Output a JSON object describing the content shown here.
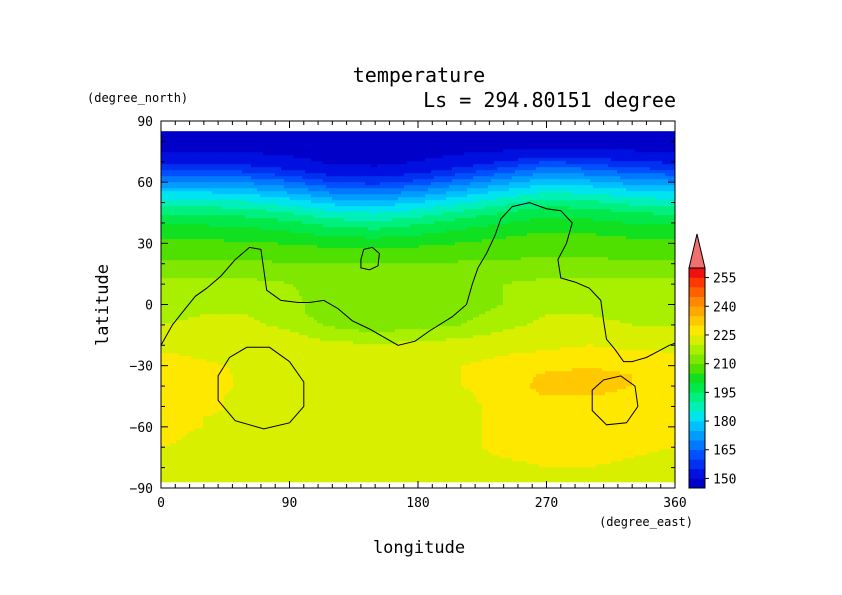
{
  "chart_data": {
    "type": "heatmap",
    "title": "temperature",
    "subtitle": "Ls = 294.80151 degree",
    "xlabel": "longitude",
    "ylabel": "latitude",
    "x_units": "(degree_east)",
    "y_units": "(degree_north)",
    "xlim": [
      0,
      360
    ],
    "ylim": [
      -90,
      90
    ],
    "x_ticks": [
      "0",
      "90",
      "180",
      "270",
      "360"
    ],
    "y_ticks": [
      "90",
      "60",
      "30",
      "0",
      "−30",
      "−60",
      "−90"
    ],
    "x_tick_values": [
      0,
      90,
      180,
      270,
      360
    ],
    "y_tick_values": [
      90,
      60,
      30,
      0,
      -30,
      -60,
      -90
    ],
    "data_lat_range": [
      -87,
      85
    ],
    "colorbar": {
      "tick_labels": [
        "150",
        "165",
        "180",
        "195",
        "210",
        "225",
        "240",
        "255"
      ],
      "tick_values": [
        150,
        165,
        180,
        195,
        210,
        225,
        240,
        255
      ],
      "levels": [
        145,
        150,
        155,
        160,
        165,
        170,
        175,
        180,
        185,
        190,
        195,
        200,
        205,
        210,
        215,
        220,
        225,
        230,
        235,
        240,
        245,
        250,
        255,
        260
      ],
      "colors": [
        "#0000c8",
        "#0010e0",
        "#0030f0",
        "#0050ff",
        "#0078ff",
        "#009cff",
        "#00c0ff",
        "#00e4f0",
        "#00f0b8",
        "#00f080",
        "#00e84a",
        "#10e020",
        "#50e000",
        "#80e800",
        "#a8f000",
        "#d8f000",
        "#ffe800",
        "#ffc800",
        "#ffa800",
        "#ff8800",
        "#ff6000",
        "#ff3800",
        "#f01010"
      ],
      "extend_max_color": "#f07070",
      "extend": "max"
    },
    "profiles": [
      {
        "lat": 85,
        "temps": [
          147
        ]
      },
      {
        "lat": 80,
        "temps": [
          148
        ]
      },
      {
        "lat": 75,
        "temps": [
          150
        ]
      },
      {
        "lat": 70,
        "temps": [
          154
        ]
      },
      {
        "lat": 67,
        "temps": [
          158
        ]
      },
      {
        "lat": 64,
        "temps": [
          164
        ]
      },
      {
        "lat": 60,
        "temps": [
          171
        ]
      },
      {
        "lat": 55,
        "temps": [
          180
        ]
      },
      {
        "lat": 50,
        "temps": [
          187
        ]
      },
      {
        "lat": 45,
        "temps": [
          194
        ]
      },
      {
        "lat": 40,
        "temps": [
          199
        ]
      },
      {
        "lat": 35,
        "temps": [
          203
        ]
      },
      {
        "lat": 30,
        "temps": [
          206
        ]
      },
      {
        "lat": 25,
        "temps": [
          208
        ]
      },
      {
        "lat": 20,
        "temps": [
          211
        ]
      },
      {
        "lat": 15,
        "temps": [
          214
        ]
      },
      {
        "lat": 10,
        "temps": [
          216,
          216,
          216,
          215,
          213,
          213,
          214,
          214,
          215,
          216,
          216,
          216,
          216
        ]
      },
      {
        "lat": 5,
        "temps": [
          217,
          217,
          218,
          216,
          212,
          211,
          212,
          213,
          215,
          217,
          217,
          217,
          217
        ]
      },
      {
        "lat": 0,
        "temps": [
          218,
          219,
          219,
          217,
          211,
          210,
          211,
          212,
          215,
          218,
          219,
          218,
          218
        ]
      },
      {
        "lat": -5,
        "temps": [
          219,
          220,
          220,
          217,
          212,
          210,
          211,
          213,
          217,
          220,
          220,
          219,
          219
        ]
      },
      {
        "lat": -10,
        "temps": [
          220,
          221,
          221,
          219,
          214,
          212,
          213,
          215,
          219,
          221,
          221,
          220,
          220
        ]
      },
      {
        "lat": -15,
        "temps": [
          221,
          222,
          222,
          221,
          218,
          216,
          218,
          219,
          221,
          222,
          222,
          221,
          221
        ]
      },
      {
        "lat": -20,
        "temps": [
          223,
          223,
          223,
          222,
          221,
          221,
          221,
          222,
          223,
          224,
          225,
          224,
          223
        ]
      },
      {
        "lat": -25,
        "temps": [
          226,
          224,
          223,
          223,
          223,
          223,
          223,
          224,
          225,
          226,
          227,
          226,
          226
        ]
      },
      {
        "lat": -30,
        "temps": [
          227,
          226,
          224,
          223,
          223,
          223,
          223,
          225,
          226,
          228,
          229,
          228,
          227
        ]
      },
      {
        "lat": -35,
        "temps": [
          228,
          227,
          224,
          223,
          223,
          223,
          223,
          225,
          227,
          231,
          233,
          230,
          228
        ]
      },
      {
        "lat": -40,
        "temps": [
          228,
          227,
          224,
          223,
          223,
          223,
          223,
          225,
          227,
          232,
          233,
          230,
          228
        ]
      },
      {
        "lat": -45,
        "temps": [
          228,
          226,
          224,
          223,
          223,
          223,
          223,
          224,
          227,
          230,
          230,
          228,
          228
        ]
      },
      {
        "lat": -50,
        "temps": [
          227,
          226,
          224,
          223,
          223,
          223,
          223,
          224,
          226,
          228,
          228,
          227,
          227
        ]
      },
      {
        "lat": -55,
        "temps": [
          227,
          225,
          224,
          223,
          223,
          223,
          223,
          224,
          226,
          227,
          227,
          227,
          227
        ]
      },
      {
        "lat": -60,
        "temps": [
          226,
          225,
          224,
          223,
          223,
          223,
          223,
          224,
          226,
          227,
          227,
          227,
          226
        ]
      },
      {
        "lat": -65,
        "temps": [
          226,
          224,
          223,
          223,
          223,
          223,
          223,
          224,
          226,
          227,
          227,
          227,
          226
        ]
      },
      {
        "lat": -70,
        "temps": [
          225,
          224,
          223,
          223,
          223,
          223,
          223,
          224,
          226,
          227,
          227,
          226,
          225
        ]
      },
      {
        "lat": -75,
        "temps": [
          224,
          223,
          223,
          223,
          223,
          223,
          223,
          224,
          225,
          226,
          226,
          225,
          224
        ]
      },
      {
        "lat": -80,
        "temps": [
          224,
          223,
          223,
          223,
          223,
          223,
          223,
          223,
          224,
          225,
          225,
          224,
          224
        ]
      },
      {
        "lat": -87,
        "temps": [
          223,
          223,
          223,
          223,
          223,
          223,
          223,
          223,
          223,
          223,
          223,
          223,
          223
        ]
      }
    ],
    "wave": {
      "amplitude": 5,
      "phases": [
        0,
        0,
        -1,
        -3,
        -6,
        -7,
        -5,
        -2,
        1,
        4,
        3,
        1,
        0
      ]
    },
    "contours": [
      {
        "name": "topography",
        "closed": false,
        "points": [
          [
            0,
            -20
          ],
          [
            8,
            -10
          ],
          [
            16,
            -3
          ],
          [
            24,
            4
          ],
          [
            32,
            8
          ],
          [
            42,
            14
          ],
          [
            52,
            22
          ],
          [
            62,
            28
          ],
          [
            70,
            27
          ],
          [
            72,
            17
          ],
          [
            74,
            7
          ],
          [
            84,
            2
          ],
          [
            96,
            1
          ],
          [
            104,
            1
          ],
          [
            114,
            2
          ],
          [
            124,
            -2
          ],
          [
            134,
            -8
          ],
          [
            146,
            -12
          ],
          [
            156,
            -16
          ],
          [
            166,
            -20
          ],
          [
            178,
            -18
          ],
          [
            188,
            -13
          ],
          [
            204,
            -6
          ],
          [
            214,
            0
          ],
          [
            218,
            10
          ],
          [
            222,
            18
          ],
          [
            228,
            25
          ],
          [
            234,
            34
          ],
          [
            238,
            42
          ],
          [
            246,
            48
          ],
          [
            258,
            50
          ],
          [
            270,
            47
          ],
          [
            280,
            46
          ],
          [
            288,
            40
          ],
          [
            284,
            30
          ],
          [
            278,
            22
          ],
          [
            280,
            13
          ],
          [
            290,
            11
          ],
          [
            300,
            8
          ],
          [
            308,
            2
          ],
          [
            310,
            -8
          ],
          [
            312,
            -17
          ],
          [
            318,
            -22
          ],
          [
            324,
            -28
          ],
          [
            330,
            -28
          ],
          [
            340,
            -26
          ],
          [
            348,
            -23
          ],
          [
            356,
            -20
          ],
          [
            360,
            -19
          ]
        ]
      },
      {
        "name": "topography",
        "closed": true,
        "points": [
          [
            140,
            22
          ],
          [
            142,
            27
          ],
          [
            148,
            28
          ],
          [
            153,
            25
          ],
          [
            152,
            19
          ],
          [
            146,
            17
          ],
          [
            140,
            18
          ]
        ]
      },
      {
        "name": "topography",
        "closed": true,
        "points": [
          [
            40,
            -35
          ],
          [
            48,
            -26
          ],
          [
            60,
            -21
          ],
          [
            76,
            -21
          ],
          [
            90,
            -28
          ],
          [
            100,
            -38
          ],
          [
            100,
            -50
          ],
          [
            90,
            -58
          ],
          [
            72,
            -61
          ],
          [
            52,
            -57
          ],
          [
            40,
            -47
          ]
        ]
      },
      {
        "name": "topography",
        "closed": true,
        "points": [
          [
            302,
            -42
          ],
          [
            310,
            -37
          ],
          [
            322,
            -35
          ],
          [
            332,
            -40
          ],
          [
            334,
            -50
          ],
          [
            326,
            -58
          ],
          [
            312,
            -59
          ],
          [
            302,
            -52
          ]
        ]
      }
    ]
  }
}
